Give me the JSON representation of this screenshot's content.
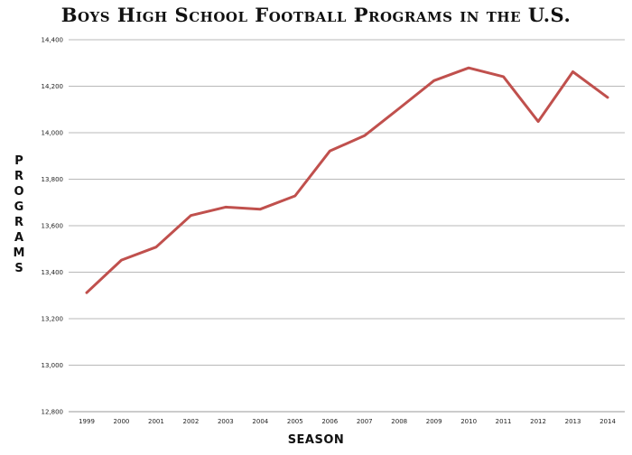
{
  "chart_data": {
    "type": "line",
    "title": "Boys High School Football Programs in the U.S.",
    "xlabel": "SEASON",
    "ylabel": "PROGRAMS",
    "categories": [
      "1999",
      "2000",
      "2001",
      "2002",
      "2003",
      "2004",
      "2005",
      "2006",
      "2007",
      "2008",
      "2009",
      "2010",
      "2011",
      "2012",
      "2013",
      "2014"
    ],
    "series": [
      {
        "values": [
          13312,
          13452,
          13508,
          13644,
          13680,
          13671,
          13728,
          13921,
          13987,
          14105,
          14224,
          14279,
          14241,
          14048,
          14262,
          14152
        ]
      }
    ],
    "ylim": [
      12800,
      14400
    ],
    "yticks": [
      12800,
      13000,
      13200,
      13400,
      13600,
      13800,
      14000,
      14200,
      14400
    ],
    "ytick_labels": [
      "12,800",
      "13,000",
      "13,200",
      "13,400",
      "13,600",
      "13,800",
      "14,000",
      "14,200",
      "14,400"
    ],
    "grid": true,
    "line_color": "#c0504d"
  }
}
